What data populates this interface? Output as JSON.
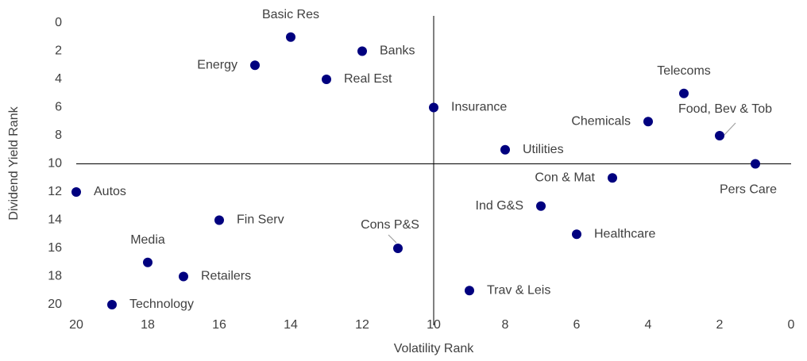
{
  "chart_data": {
    "type": "scatter",
    "xlabel": "Volatility Rank",
    "ylabel": "Dividend Yield Rank",
    "xlim": [
      20,
      0
    ],
    "ylim": [
      0,
      20
    ],
    "xticks": [
      20,
      18,
      16,
      14,
      12,
      10,
      8,
      6,
      4,
      2,
      0
    ],
    "yticks": [
      0,
      2,
      4,
      6,
      8,
      10,
      12,
      14,
      16,
      18,
      20
    ],
    "color": "#00007f",
    "point_labels": [
      "Basic Res",
      "Banks",
      "Energy",
      "Real Est",
      "Insurance",
      "Telecoms",
      "Chemicals",
      "Food, Bev & Tob",
      "Utilities",
      "Pers Care",
      "Con & Mat",
      "Autos",
      "Ind G&S",
      "Fin Serv",
      "Healthcare",
      "Cons P&S",
      "Media",
      "Retailers",
      "Trav & Leis",
      "Technology"
    ],
    "x": [
      14,
      12,
      15,
      13,
      10,
      3,
      4,
      2,
      8,
      1,
      5,
      20,
      7,
      16,
      6,
      11,
      18,
      17,
      9,
      19
    ],
    "values": [
      1,
      2,
      3,
      4,
      6,
      5,
      7,
      8,
      9,
      10,
      11,
      12,
      13,
      14,
      15,
      16,
      17,
      18,
      19,
      20
    ]
  }
}
